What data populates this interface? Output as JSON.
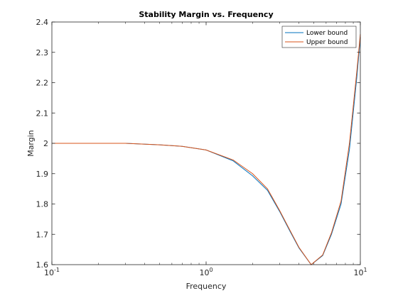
{
  "chart_data": {
    "type": "line",
    "title": "Stability Margin vs. Frequency",
    "xlabel": "Frequency",
    "ylabel": "Margin",
    "xscale": "log",
    "xlim": [
      0.1,
      10
    ],
    "ylim": [
      1.6,
      2.4
    ],
    "x_ticks": [
      {
        "value": 0.1,
        "base": "10",
        "exp": "-1"
      },
      {
        "value": 1,
        "base": "10",
        "exp": "0"
      },
      {
        "value": 10,
        "base": "10",
        "exp": "1"
      }
    ],
    "y_ticks": [
      {
        "value": 1.6,
        "label": "1.6"
      },
      {
        "value": 1.7,
        "label": "1.7"
      },
      {
        "value": 1.8,
        "label": "1.8"
      },
      {
        "value": 1.9,
        "label": "1.9"
      },
      {
        "value": 2.0,
        "label": "2"
      },
      {
        "value": 2.1,
        "label": "2.1"
      },
      {
        "value": 2.2,
        "label": "2.2"
      },
      {
        "value": 2.3,
        "label": "2.3"
      },
      {
        "value": 2.4,
        "label": "2.4"
      }
    ],
    "grid": false,
    "legend_position": "top-right",
    "series": [
      {
        "name": "Lower bound",
        "color": "#0072BD",
        "x": [
          0.1,
          0.2,
          0.3,
          0.5,
          0.7,
          1.0,
          1.5,
          2.0,
          2.5,
          3.0,
          3.5,
          4.0,
          4.8,
          5.7,
          6.5,
          7.5,
          8.5,
          9.5,
          10.0
        ],
        "y": [
          2.0,
          2.0,
          2.0,
          1.995,
          1.99,
          1.978,
          1.942,
          1.893,
          1.845,
          1.775,
          1.71,
          1.655,
          1.6,
          1.63,
          1.7,
          1.8,
          1.98,
          2.22,
          2.35
        ]
      },
      {
        "name": "Upper bound",
        "color": "#D95319",
        "x": [
          0.1,
          0.2,
          0.3,
          0.5,
          0.7,
          1.0,
          1.5,
          2.0,
          2.5,
          3.0,
          3.5,
          4.0,
          4.8,
          5.7,
          6.5,
          7.5,
          8.5,
          9.5,
          10.0
        ],
        "y": [
          2.0,
          2.0,
          2.0,
          1.995,
          1.99,
          1.978,
          1.945,
          1.9,
          1.85,
          1.778,
          1.713,
          1.657,
          1.6,
          1.632,
          1.705,
          1.81,
          2.0,
          2.24,
          2.36
        ]
      }
    ]
  }
}
